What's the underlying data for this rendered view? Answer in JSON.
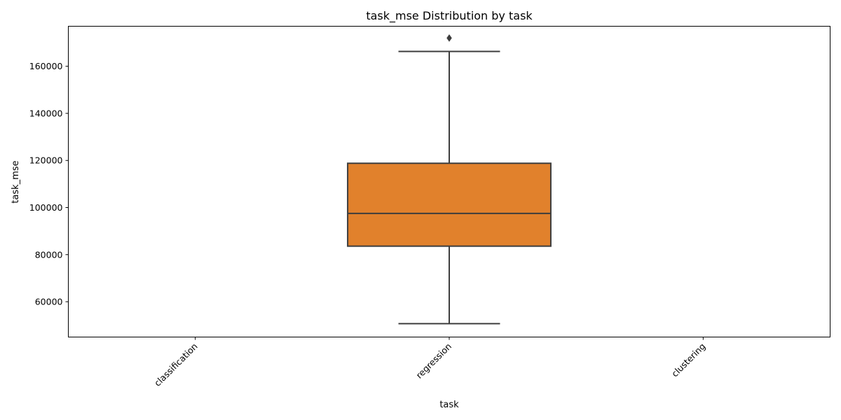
{
  "chart_data": {
    "type": "box",
    "title": "task_mse Distribution by task",
    "xlabel": "task",
    "ylabel": "task_mse",
    "categories": [
      "classification",
      "regression",
      "clustering"
    ],
    "ylim": [
      45000,
      177000
    ],
    "yticks": [
      60000,
      80000,
      100000,
      120000,
      140000,
      160000
    ],
    "grid": false,
    "boxes": [
      {
        "category": "regression",
        "whisker_low": 50700,
        "q1": 83600,
        "median": 97500,
        "q3": 118800,
        "whisker_high": 166300,
        "outliers": [
          172000
        ],
        "color": "#e1812c"
      }
    ]
  }
}
